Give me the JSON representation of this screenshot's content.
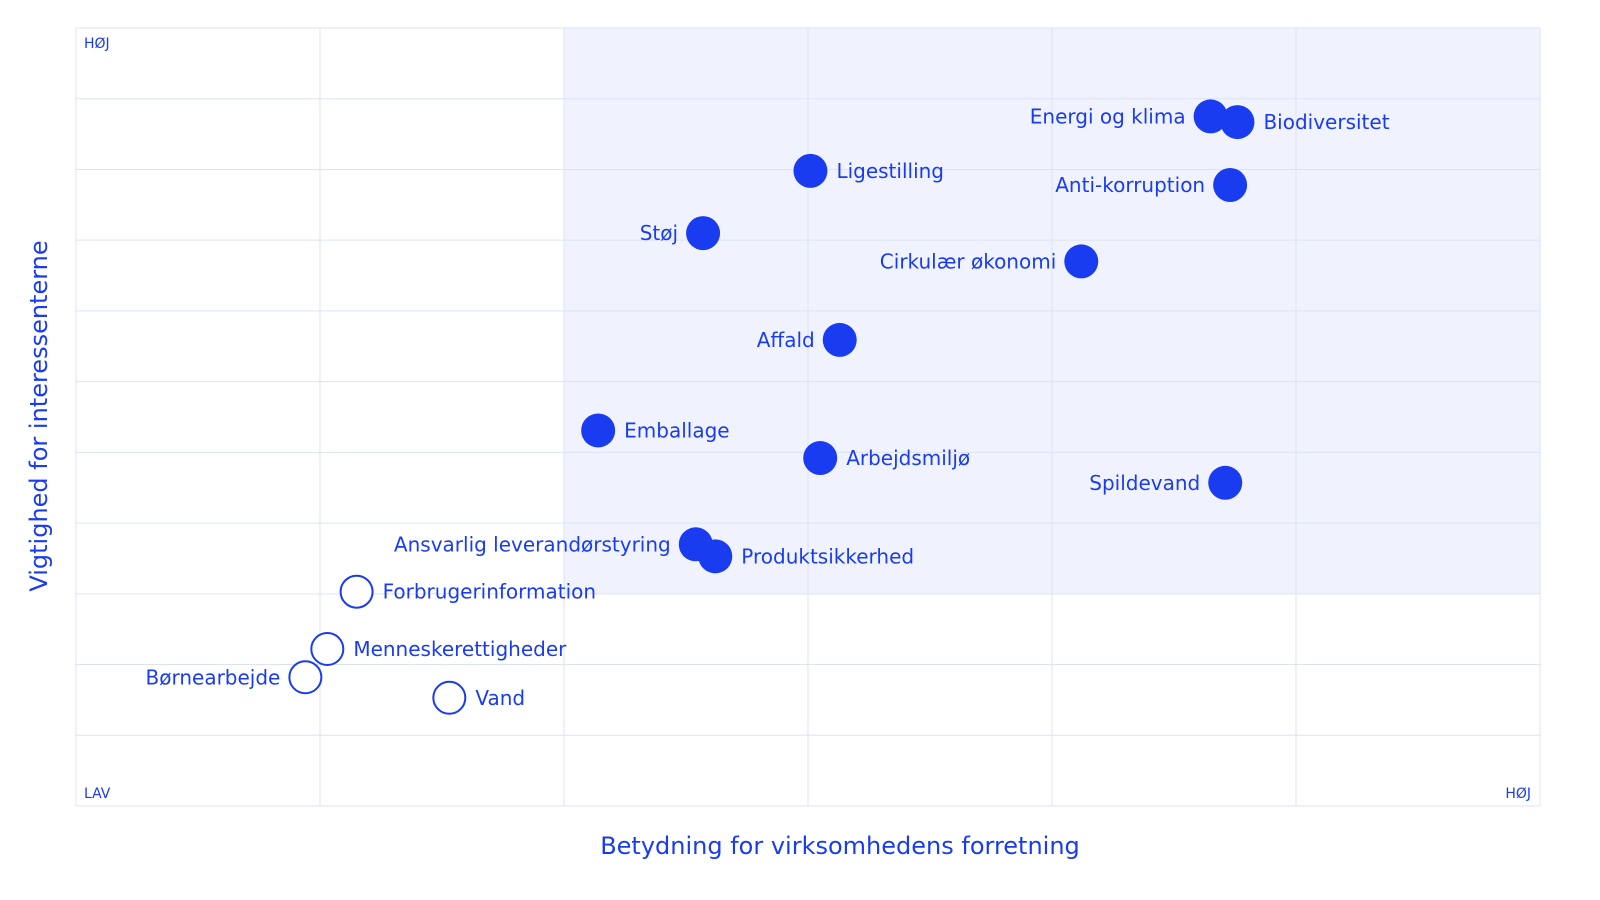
{
  "chart_data": {
    "type": "scatter",
    "title": "",
    "xlabel": "Betydning for virksomhedens forretning",
    "ylabel": "Vigtighed for interessenterne",
    "x_low_label": "LAV",
    "x_high_label": "HØJ",
    "y_high_label": "HØJ",
    "xlim": [
      0,
      6
    ],
    "ylim": [
      0,
      11
    ],
    "grid": true,
    "highlight_region": {
      "x": [
        2,
        6
      ],
      "y": [
        3,
        11
      ],
      "color": "#f0f3fd"
    },
    "colors": {
      "accent": "#1a3cf0",
      "grid": "#dde3f5"
    },
    "points": [
      {
        "label": "Energi og klima",
        "x": 4.65,
        "y": 9.75,
        "filled": true,
        "label_side": "left"
      },
      {
        "label": "Biodiversitet",
        "x": 4.76,
        "y": 9.67,
        "filled": true,
        "label_side": "right"
      },
      {
        "label": "Ligestilling",
        "x": 3.01,
        "y": 8.98,
        "filled": true,
        "label_side": "right"
      },
      {
        "label": "Anti-korruption",
        "x": 4.73,
        "y": 8.78,
        "filled": true,
        "label_side": "left"
      },
      {
        "label": "Støj",
        "x": 2.57,
        "y": 8.1,
        "filled": true,
        "label_side": "left"
      },
      {
        "label": "Cirkulær økonomi",
        "x": 4.12,
        "y": 7.7,
        "filled": true,
        "label_side": "left"
      },
      {
        "label": "Affald",
        "x": 3.13,
        "y": 6.59,
        "filled": true,
        "label_side": "left"
      },
      {
        "label": "Emballage",
        "x": 2.14,
        "y": 5.31,
        "filled": true,
        "label_side": "right"
      },
      {
        "label": "Arbejdsmiljø",
        "x": 3.05,
        "y": 4.92,
        "filled": true,
        "label_side": "right"
      },
      {
        "label": "Spildevand",
        "x": 4.71,
        "y": 4.57,
        "filled": true,
        "label_side": "left"
      },
      {
        "label": "Ansvarlig leverandørstyring",
        "x": 2.54,
        "y": 3.7,
        "filled": true,
        "label_side": "left"
      },
      {
        "label": "Produktsikkerhed",
        "x": 2.62,
        "y": 3.53,
        "filled": true,
        "label_side": "right"
      },
      {
        "label": "Forbrugerinformation",
        "x": 1.15,
        "y": 3.03,
        "filled": false,
        "label_side": "right"
      },
      {
        "label": "Menneskerettigheder",
        "x": 1.03,
        "y": 2.22,
        "filled": false,
        "label_side": "right"
      },
      {
        "label": "Børnearbejde",
        "x": 0.94,
        "y": 1.82,
        "filled": false,
        "label_side": "left"
      },
      {
        "label": "Vand",
        "x": 1.53,
        "y": 1.53,
        "filled": false,
        "label_side": "right"
      }
    ]
  }
}
